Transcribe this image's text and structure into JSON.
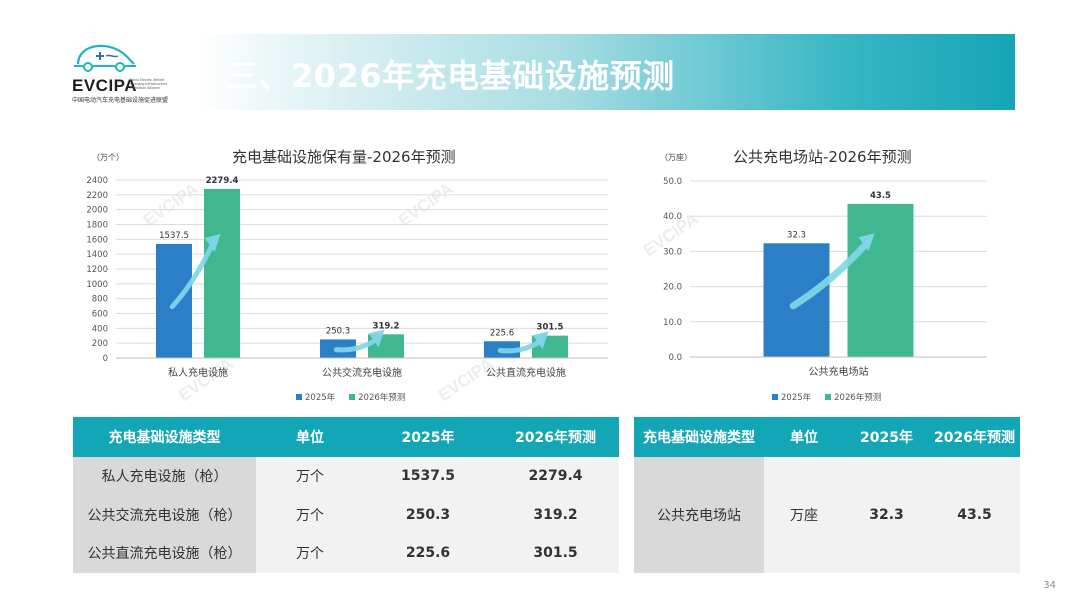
{
  "header": {
    "logo_word": "EVCIPA",
    "logo_en": "China Electric Vehicle\nCharging Infrastructure\nPromotion Alliance",
    "logo_cn": "中国电动汽车充电基础设施促进联盟",
    "title": "三、2026年充电基础设施预测"
  },
  "watermark_text": "EVCIPA",
  "chart_data": [
    {
      "type": "bar",
      "title": "充电基础设施保有量-2026年预测",
      "unit": "（万个）",
      "categories": [
        "私人充电设施",
        "公共交流充电设施",
        "公共直流充电设施"
      ],
      "series": [
        {
          "name": "2025年",
          "values": [
            1537.5,
            250.3,
            225.6
          ],
          "color": "#2a7fc6"
        },
        {
          "name": "2026年预测",
          "values": [
            2279.4,
            319.2,
            301.5
          ],
          "color": "#3fb88f"
        }
      ],
      "ylim": [
        0,
        2400
      ],
      "yticks": [
        0,
        200,
        400,
        600,
        800,
        1000,
        1200,
        1400,
        1600,
        1800,
        2000,
        2200,
        2400
      ],
      "grid": true,
      "legend": "bottom"
    },
    {
      "type": "bar",
      "title": "公共充电场站-2026年预测",
      "unit": "（万座）",
      "categories": [
        "公共充电场站"
      ],
      "series": [
        {
          "name": "2025年",
          "values": [
            32.3
          ],
          "color": "#2a7fc6"
        },
        {
          "name": "2026年预测",
          "values": [
            43.5
          ],
          "color": "#3fb88f"
        }
      ],
      "ylim": [
        0,
        50
      ],
      "yticks": [
        "0.0",
        "10.0",
        "20.0",
        "30.0",
        "40.0",
        "50.0"
      ],
      "grid": true,
      "legend": "bottom"
    }
  ],
  "table_left": {
    "headers": [
      "充电基础设施类型",
      "单位",
      "2025年",
      "2026年预测"
    ],
    "rows": [
      [
        "私人充电设施（枪）",
        "万个",
        "1537.5",
        "2279.4"
      ],
      [
        "公共交流充电设施（枪）",
        "万个",
        "250.3",
        "319.2"
      ],
      [
        "公共直流充电设施（枪）",
        "万个",
        "225.6",
        "301.5"
      ]
    ]
  },
  "table_right": {
    "headers": [
      "充电基础设施类型",
      "单位",
      "2025年",
      "2026年预测"
    ],
    "rows": [
      [
        "公共充电场站",
        "万座",
        "32.3",
        "43.5"
      ]
    ]
  },
  "page_number": "34",
  "colors": {
    "teal": "#13a6b6",
    "bar_2025": "#2a7fc6",
    "bar_2026": "#3fb88f",
    "arrow": "#7fd6e8"
  }
}
